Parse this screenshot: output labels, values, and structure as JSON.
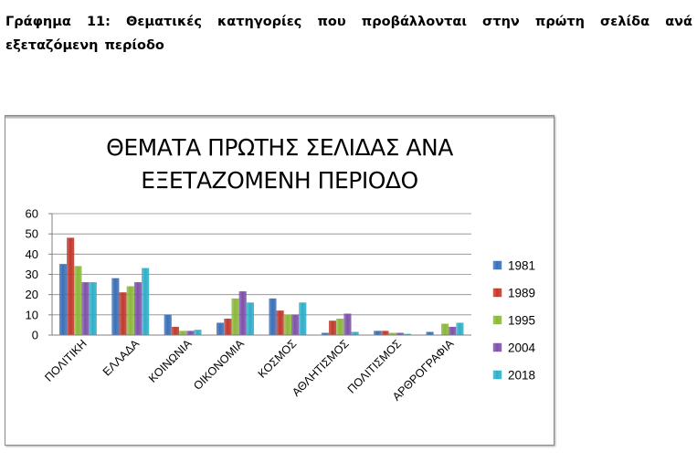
{
  "caption": "Γράφημα 11: Θεματικές κατηγορίες που προβάλλονται στην πρώτη σελίδα ανά εξεταζόμενη περίοδο",
  "colors": {
    "1981": "#3a6fb8",
    "1989": "#c0392b",
    "1995": "#8bb73a",
    "2004": "#7d52a8",
    "2018": "#30aec8"
  },
  "chart_data": {
    "type": "bar",
    "title_lines": [
      "ΘΕΜΑΤΑ ΠΡΩΤΗΣ ΣΕΛΙΔΑΣ ΑΝΑ",
      "ΕΞΕΤΑΖΟΜΕΝΗ ΠΕΡΙΟΔΟ"
    ],
    "xlabel": "",
    "ylabel": "",
    "ylim": [
      0,
      60
    ],
    "yticks": [
      0,
      10,
      20,
      30,
      40,
      50,
      60
    ],
    "grid": true,
    "legend_position": "right",
    "categories": [
      "ΠΟΛΙΤΙΚΗ",
      "ΕΛΛΑΔΑ",
      "ΚΟΙΝΩΝΙΑ",
      "ΟΙΚΟΝΟΜΙΑ",
      "ΚΟΣΜΟΣ",
      "ΑΘΛΗΤΙΣΜΟΣ",
      "ΠΟΛΙΤΙΣΜΟΣ",
      "ΑΡΘΡΟΓΡΑΦΙΑ"
    ],
    "series": [
      {
        "name": "1981",
        "values": [
          35,
          28,
          10,
          6,
          18,
          1,
          2,
          1.5
        ]
      },
      {
        "name": "1989",
        "values": [
          48,
          21,
          4,
          8,
          12,
          7,
          2,
          0
        ]
      },
      {
        "name": "1995",
        "values": [
          34,
          24,
          2,
          18,
          10,
          8,
          1,
          5.5
        ]
      },
      {
        "name": "2004",
        "values": [
          26,
          26,
          2,
          21.5,
          10,
          10.5,
          1,
          4
        ]
      },
      {
        "name": "2018",
        "values": [
          26,
          33,
          2.5,
          16,
          16,
          1.5,
          0.5,
          6
        ]
      }
    ]
  }
}
